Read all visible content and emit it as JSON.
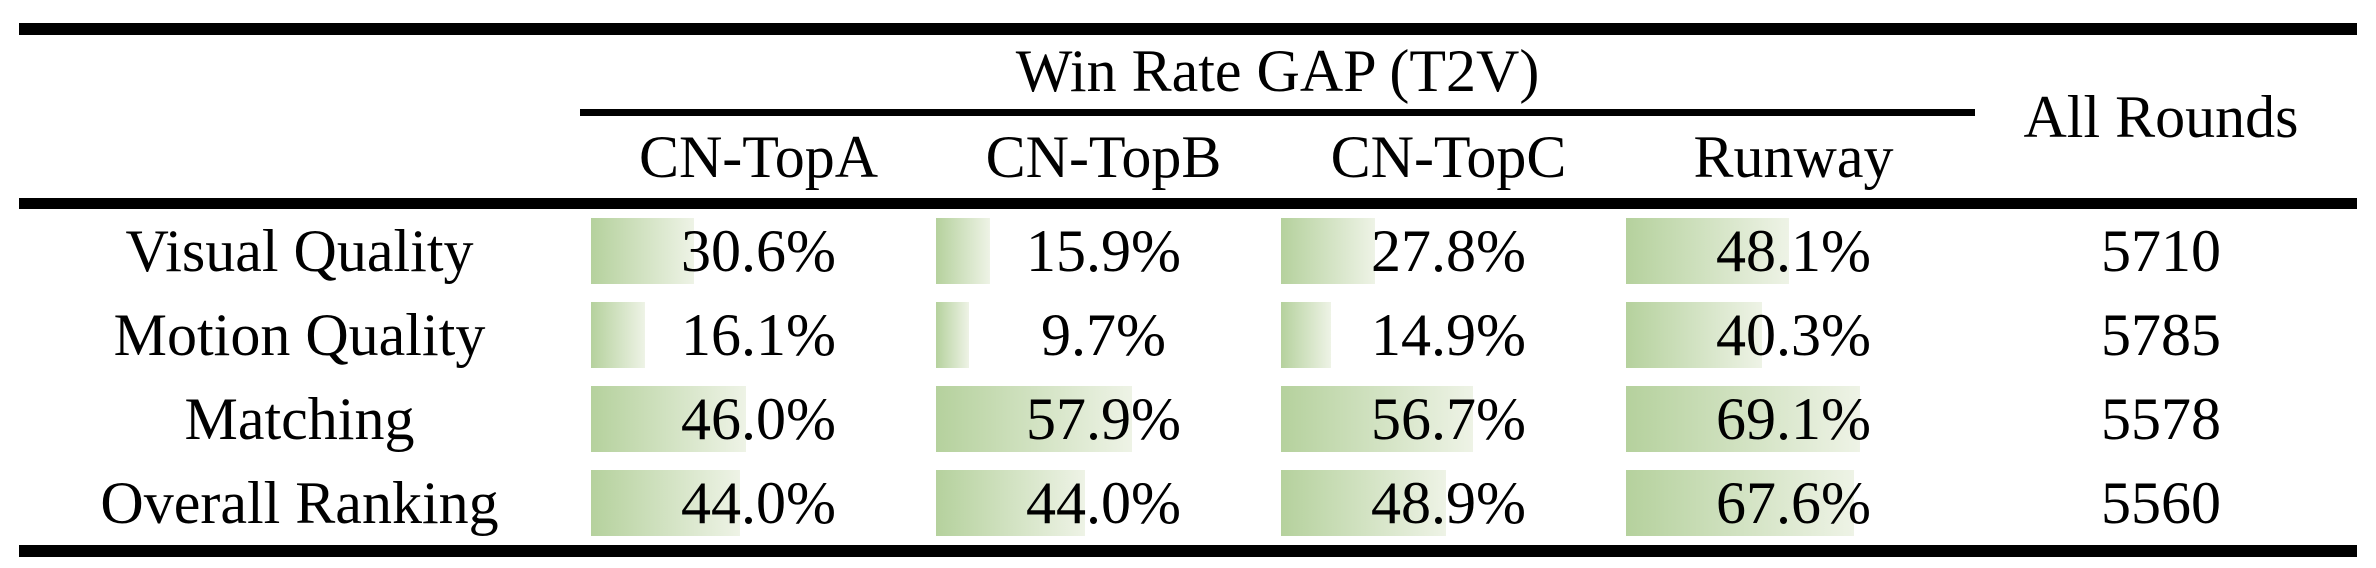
{
  "table": {
    "group_header": "Win Rate GAP (T2V)",
    "all_rounds_header": "All Rounds",
    "model_columns": [
      "CN-TopA",
      "CN-TopB",
      "CN-TopC",
      "Runway"
    ],
    "rows": [
      {
        "label": "Visual Quality",
        "values": [
          "30.6%",
          "15.9%",
          "27.8%",
          "48.1%"
        ],
        "bars": [
          30.6,
          15.9,
          27.8,
          48.1
        ],
        "all_rounds": "5710"
      },
      {
        "label": "Motion Quality",
        "values": [
          "16.1%",
          "9.7%",
          "14.9%",
          "40.3%"
        ],
        "bars": [
          16.1,
          9.7,
          14.9,
          40.3
        ],
        "all_rounds": "5785"
      },
      {
        "label": "Matching",
        "values": [
          "46.0%",
          "57.9%",
          "56.7%",
          "69.1%"
        ],
        "bars": [
          46.0,
          57.9,
          56.7,
          69.1
        ],
        "all_rounds": "5578"
      },
      {
        "label": "Overall Ranking",
        "values": [
          "44.0%",
          "44.0%",
          "48.9%",
          "67.6%"
        ],
        "bars": [
          44.0,
          44.0,
          48.9,
          67.6
        ],
        "all_rounds": "5560"
      }
    ]
  },
  "colors": {
    "bar_gradient_start": "#b5d19d",
    "bar_gradient_end": "#eef3e6",
    "rule_color": "#000000",
    "text_color": "#000000",
    "background": "#ffffff"
  },
  "chart_data": {
    "type": "table",
    "title": "Win Rate GAP (T2V)",
    "categories": [
      "Visual Quality",
      "Motion Quality",
      "Matching",
      "Overall Ranking"
    ],
    "series": [
      {
        "name": "CN-TopA",
        "values": [
          30.6,
          16.1,
          46.0,
          44.0
        ]
      },
      {
        "name": "CN-TopB",
        "values": [
          15.9,
          9.7,
          57.9,
          44.0
        ]
      },
      {
        "name": "CN-TopC",
        "values": [
          27.8,
          14.9,
          56.7,
          48.9
        ]
      },
      {
        "name": "Runway",
        "values": [
          48.1,
          40.3,
          69.1,
          67.6
        ]
      },
      {
        "name": "All Rounds",
        "values": [
          5710,
          5785,
          5578,
          5560
        ]
      }
    ],
    "unit": "percent (win-rate gap), All Rounds in counts",
    "layout": "data bars drawn left-aligned behind percentages, length proportional to value"
  }
}
